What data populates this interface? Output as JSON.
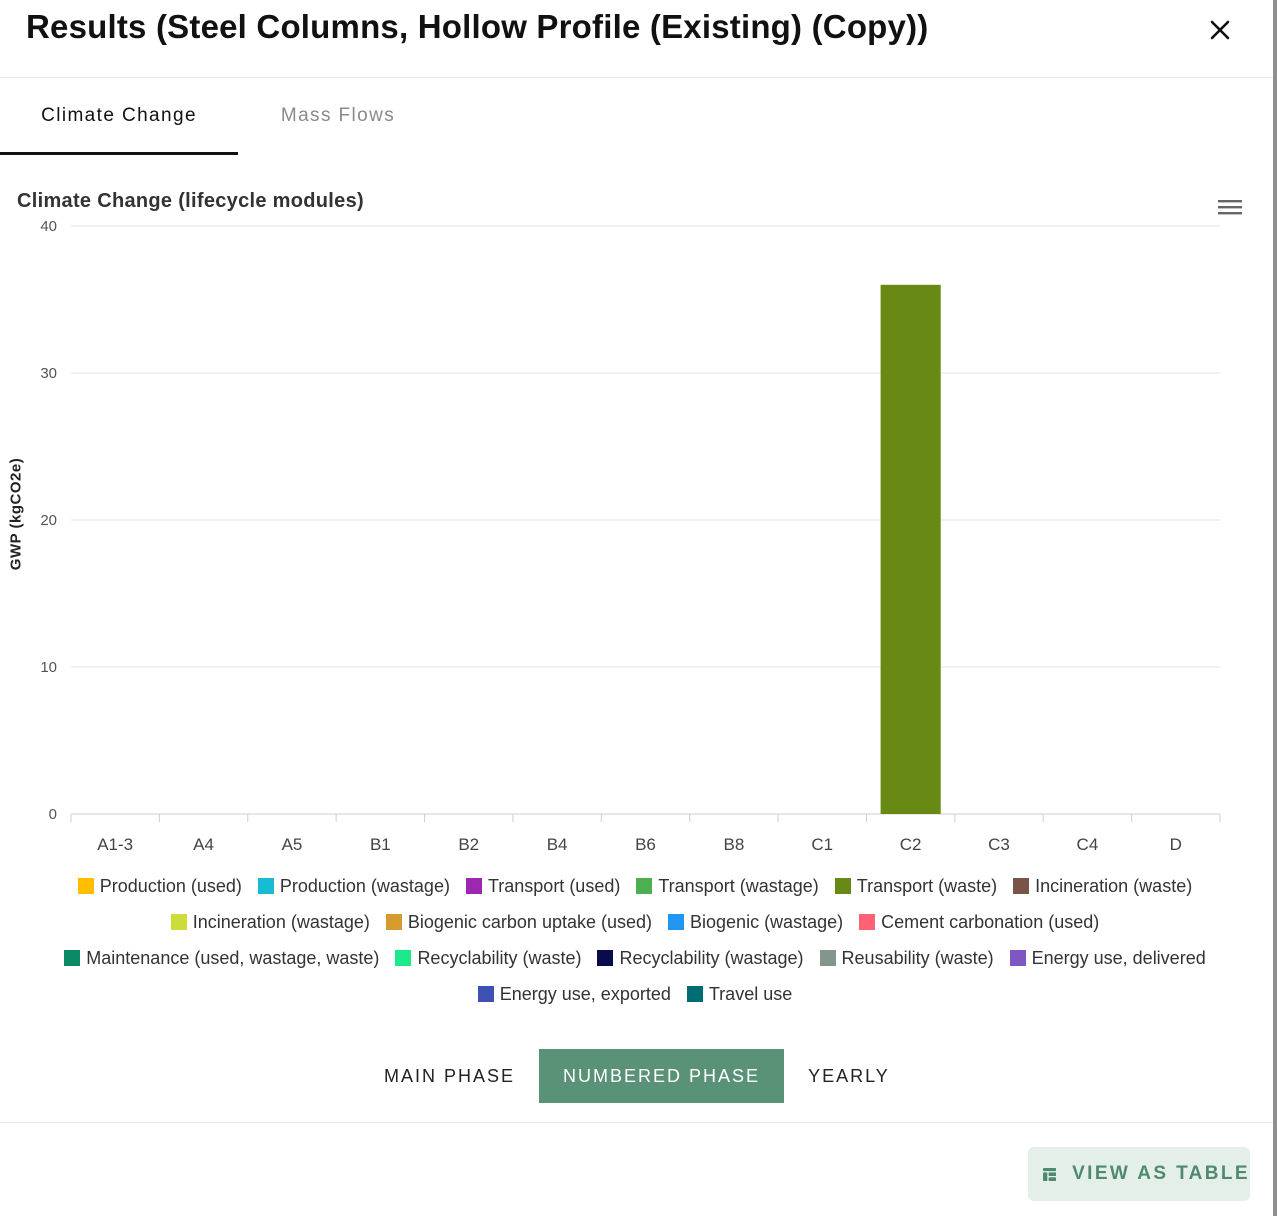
{
  "dialog": {
    "title": "Results (Steel Columns, Hollow Profile (Existing) (Copy))"
  },
  "tabs": [
    {
      "label": "Climate Change",
      "active": true
    },
    {
      "label": "Mass Flows",
      "active": false
    }
  ],
  "chart_data": {
    "type": "bar",
    "title": "Climate Change (lifecycle modules)",
    "xlabel": "",
    "ylabel": "GWP (kgCO2e)",
    "ylim": [
      0,
      40
    ],
    "yticks": [
      0,
      10,
      20,
      30,
      40
    ],
    "grid": true,
    "legend_placement": "bottom",
    "categories": [
      "A1-3",
      "A4",
      "A5",
      "B1",
      "B2",
      "B4",
      "B6",
      "B8",
      "C1",
      "C2",
      "C3",
      "C4",
      "D"
    ],
    "series": [
      {
        "name": "Transport (waste)",
        "color": "#688a14",
        "values": [
          0,
          0,
          0,
          0,
          0,
          0,
          0,
          0,
          0,
          36,
          0,
          0,
          0
        ]
      }
    ]
  },
  "legend": {
    "rows": [
      [
        {
          "label": "Production (used)",
          "color": "#ffbf00"
        },
        {
          "label": "Production (wastage)",
          "color": "#17bcd4"
        },
        {
          "label": "Transport (used)",
          "color": "#9c27b0"
        },
        {
          "label": "Transport (wastage)",
          "color": "#4caf50"
        },
        {
          "label": "Transport (waste)",
          "color": "#688a14"
        },
        {
          "label": "Incineration (waste)",
          "color": "#795548"
        }
      ],
      [
        {
          "label": "Incineration (wastage)",
          "color": "#cddc39"
        },
        {
          "label": "Biogenic carbon uptake (used)",
          "color": "#d69b2c"
        },
        {
          "label": "Biogenic (wastage)",
          "color": "#2196f3"
        },
        {
          "label": "Cement carbonation (used)",
          "color": "#ff6174"
        }
      ],
      [
        {
          "label": "Maintenance (used, wastage, waste)",
          "color": "#0b8a68"
        },
        {
          "label": "Recyclability (waste)",
          "color": "#1de98b"
        },
        {
          "label": "Recyclability (wastage)",
          "color": "#0a0a4e"
        },
        {
          "label": "Reusability (waste)",
          "color": "#83968c"
        },
        {
          "label": "Energy use, delivered",
          "color": "#7e57c2"
        }
      ],
      [
        {
          "label": "Energy use, exported",
          "color": "#3f51b5"
        },
        {
          "label": "Travel use",
          "color": "#006d75"
        }
      ]
    ]
  },
  "phase_buttons": [
    {
      "label": "MAIN PHASE",
      "active": false
    },
    {
      "label": "NUMBERED PHASE",
      "active": true
    },
    {
      "label": "YEARLY",
      "active": false
    }
  ],
  "footer": {
    "view_table_label": "VIEW AS TABLE",
    "view_table_icon": "table-icon"
  },
  "icons": {
    "close": "close-icon",
    "chart_menu": "hamburger-menu-icon"
  },
  "colors": {
    "accent": "#5a9277",
    "accent_light": "#e4efe9"
  }
}
